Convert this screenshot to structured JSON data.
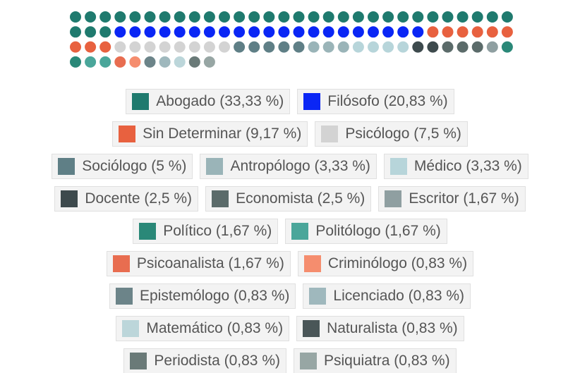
{
  "chart_data": {
    "type": "waffle",
    "categories": [
      "Abogado (33,33 %)",
      "Filósofo (20,83 %)",
      "Sin Determinar (9,17 %)",
      "Psicólogo (7,5 %)",
      "Sociólogo (5 %)",
      "Antropólogo (3,33 %)",
      "Médico (3,33 %)",
      "Docente (2,5 %)",
      "Economista (2,5 %)",
      "Escritor (1,67 %)",
      "Político (1,67 %)",
      "Politólogo (1,67 %)",
      "Psicoanalista (1,67 %)",
      "Criminólogo (0,83 %)",
      "Epistemólogo (0,83 %)",
      "Licenciado (0,83 %)",
      "Matemático (0,83 %)",
      "Naturalista (0,83 %)",
      "Periodista (0,83 %)",
      "Psiquiatra (0,83 %)"
    ],
    "values": [
      33.33,
      20.83,
      9.17,
      7.5,
      5,
      3.33,
      3.33,
      2.5,
      2.5,
      1.67,
      1.67,
      1.67,
      1.67,
      0.83,
      0.83,
      0.83,
      0.83,
      0.83,
      0.83,
      0.83
    ],
    "colors": [
      "#1f7a6e",
      "#0a26f5",
      "#e8613f",
      "#d3d3d3",
      "#5f7f86",
      "#9ab4b8",
      "#b7d5da",
      "#3d4a4d",
      "#5b6b6a",
      "#8f9fa1",
      "#2a8878",
      "#4aa69a",
      "#e86d50",
      "#f58d6e",
      "#6c8489",
      "#9fb8bd",
      "#bcd6da",
      "#4a5658",
      "#6a7a78",
      "#97a6a4"
    ]
  }
}
